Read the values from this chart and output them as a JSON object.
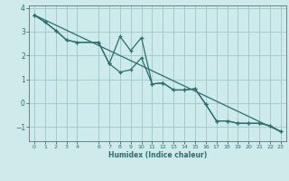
{
  "xlabel": "Humidex (Indice chaleur)",
  "background_color": "#ceeaea",
  "grid_color": "#9fc8c8",
  "line_color": "#2d6e6e",
  "xlim": [
    -0.5,
    23.5
  ],
  "ylim": [
    -1.6,
    4.1
  ],
  "xticks": [
    0,
    1,
    2,
    3,
    4,
    6,
    7,
    8,
    9,
    10,
    11,
    12,
    13,
    14,
    15,
    16,
    17,
    18,
    19,
    20,
    21,
    22,
    23
  ],
  "yticks": [
    -1,
    0,
    1,
    2,
    3,
    4
  ],
  "line1_x": [
    0,
    1,
    2,
    3,
    4,
    6,
    7,
    8,
    9,
    10,
    11,
    12,
    13,
    14,
    15,
    16,
    17,
    18,
    19,
    20,
    21,
    22,
    23
  ],
  "line1_y": [
    3.7,
    3.4,
    3.05,
    2.65,
    2.55,
    2.55,
    1.65,
    1.3,
    1.4,
    1.9,
    0.8,
    0.85,
    0.55,
    0.55,
    0.6,
    -0.05,
    -0.75,
    -0.75,
    -0.85,
    -0.85,
    -0.85,
    -0.95,
    -1.2
  ],
  "line2_x": [
    0,
    1,
    2,
    3,
    4,
    6,
    7,
    8,
    9,
    10,
    11,
    12,
    13,
    14,
    15,
    16,
    17,
    18,
    19,
    20,
    21,
    22,
    23
  ],
  "line2_y": [
    3.7,
    3.4,
    3.05,
    2.65,
    2.55,
    2.55,
    1.65,
    2.8,
    2.2,
    2.75,
    0.8,
    0.85,
    0.55,
    0.55,
    0.6,
    -0.05,
    -0.75,
    -0.75,
    -0.85,
    -0.85,
    -0.85,
    -0.95,
    -1.2
  ],
  "line3_x": [
    0,
    23
  ],
  "line3_y": [
    3.7,
    -1.2
  ]
}
